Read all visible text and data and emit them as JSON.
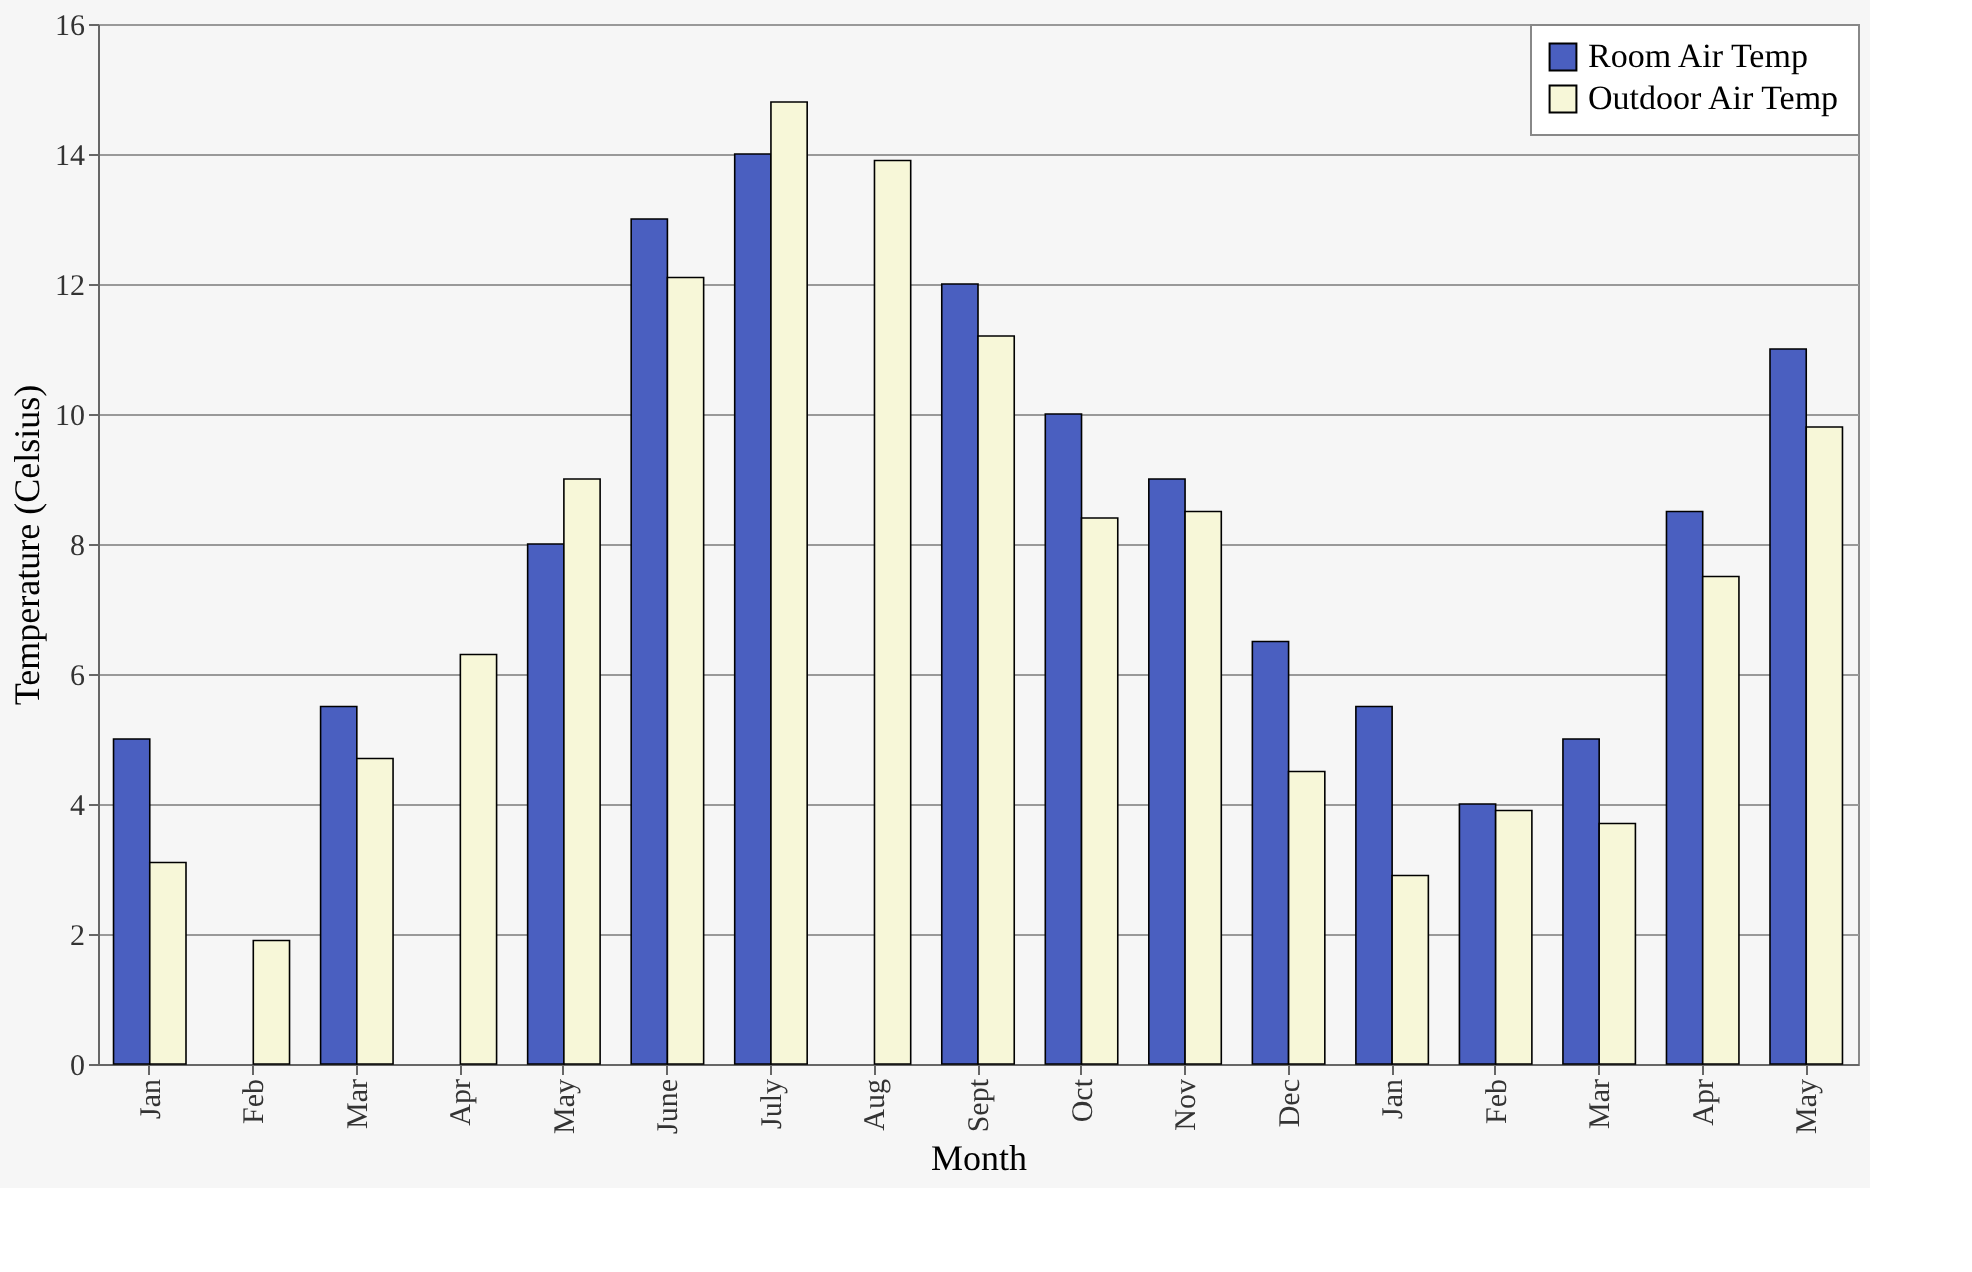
{
  "chart_data": {
    "type": "bar",
    "xlabel": "Month",
    "ylabel": "Temperature (Celsius)",
    "categories": [
      "Jan",
      "Feb",
      "Mar",
      "Apr",
      "May",
      "June",
      "July",
      "Aug",
      "Sept",
      "Oct",
      "Nov",
      "Dec",
      "Jan",
      "Feb",
      "Mar",
      "Apr",
      "May"
    ],
    "series": [
      {
        "name": "Room Air Temp",
        "color": "#4a5fc0",
        "values": [
          5,
          null,
          5.5,
          null,
          8,
          13,
          14,
          null,
          12,
          10,
          9,
          6.5,
          5.5,
          4,
          5,
          8.5,
          11
        ]
      },
      {
        "name": "Outdoor Air Temp",
        "color": "#f7f7d8",
        "values": [
          3.1,
          1.9,
          4.7,
          6.3,
          9.0,
          12.1,
          14.8,
          13.9,
          11.2,
          8.4,
          8.5,
          4.5,
          2.9,
          3.9,
          3.7,
          7.5,
          9.8
        ]
      }
    ],
    "ylim": [
      0,
      16
    ],
    "yticks": [
      0,
      2,
      4,
      6,
      8,
      10,
      12,
      14,
      16
    ],
    "grid": "y",
    "legend": "top right"
  }
}
